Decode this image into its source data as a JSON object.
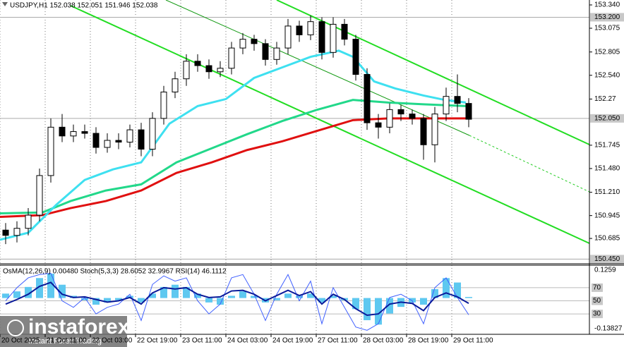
{
  "chart_data": {
    "type": "candlestick",
    "title": "USDJPY,H1  152.038 152.051 151.946 152.038",
    "xlim": [
      0,
      208.75
    ],
    "xticks": [
      {
        "value": 0,
        "label": "20 Oct 2025"
      },
      {
        "value": 16,
        "label": "21 Oct 11:00"
      },
      {
        "value": 32,
        "label": "22 Oct 03:00"
      },
      {
        "value": 48,
        "label": "22 Oct 19:00"
      },
      {
        "value": 64,
        "label": "23 Oct 11:00"
      },
      {
        "value": 80,
        "label": "24 Oct 03:00"
      },
      {
        "value": 96,
        "label": "24 Oct 19:00"
      },
      {
        "value": 112,
        "label": "27 Oct 11:00"
      },
      {
        "value": 128,
        "label": "28 Oct 03:00"
      },
      {
        "value": 144,
        "label": "28 Oct 19:00"
      },
      {
        "value": 160,
        "label": "29 Oct 11:00"
      }
    ],
    "ylim": [
      150.413,
      153.396
    ],
    "yticks": [
      150.685,
      150.945,
      {
        "value": 151.21,
        "label": "151.210"
      },
      {
        "value": 151.48,
        "label": "151.480"
      },
      151.745,
      152.27,
      {
        "value": 152.54,
        "label": "152.540"
      },
      152.805,
      153.075,
      {
        "value": 153.34,
        "label": "153.340"
      }
    ],
    "levels": [
      {
        "value": 153.2,
        "label": "153.200"
      },
      {
        "value": 152.05,
        "label": "152.050"
      },
      {
        "value": 150.45,
        "label": "150.450"
      }
    ],
    "x": [
      2,
      6,
      10,
      14,
      18,
      22,
      26,
      30,
      34,
      38,
      42,
      46,
      50,
      54,
      58,
      62,
      66,
      70,
      74,
      78,
      82,
      86,
      90,
      94,
      98,
      102,
      106,
      110,
      114,
      118,
      122,
      126,
      130,
      134,
      138,
      142,
      146,
      150,
      154,
      158,
      162,
      166
    ],
    "open": [
      150.78,
      150.72,
      150.8,
      150.95,
      151.4,
      151.95,
      151.85,
      151.9,
      151.88,
      151.72,
      151.8,
      151.78,
      151.92,
      151.7,
      152.05,
      152.35,
      152.5,
      152.7,
      152.65,
      152.58,
      152.62,
      152.85,
      152.95,
      152.9,
      152.72,
      152.85,
      153.1,
      153.0,
      153.15,
      152.8,
      153.12,
      152.95,
      152.55,
      152.0,
      151.95,
      152.15,
      152.1,
      152.05,
      151.75,
      152.1,
      152.3,
      152.22
    ],
    "high": [
      150.86,
      150.88,
      151.03,
      151.48,
      152.05,
      152.1,
      151.98,
      151.98,
      151.95,
      151.88,
      151.88,
      151.98,
      152.0,
      152.12,
      152.42,
      152.58,
      152.78,
      152.78,
      152.72,
      152.7,
      152.92,
      153.02,
      153.0,
      152.95,
      152.92,
      153.18,
      153.16,
      153.22,
      153.2,
      153.2,
      153.18,
      153.0,
      152.62,
      152.1,
      152.22,
      152.2,
      152.15,
      152.1,
      152.18,
      152.4,
      152.55,
      152.28
    ],
    "low": [
      150.62,
      150.64,
      150.72,
      150.88,
      151.32,
      151.78,
      151.78,
      151.82,
      151.65,
      151.66,
      151.7,
      151.72,
      151.62,
      151.62,
      151.98,
      152.28,
      152.42,
      152.58,
      152.5,
      152.52,
      152.55,
      152.78,
      152.82,
      152.65,
      152.66,
      152.78,
      152.92,
      152.94,
      152.72,
      152.74,
      152.88,
      152.48,
      151.92,
      151.82,
      151.88,
      152.02,
      151.98,
      151.58,
      151.55,
      152.02,
      152.12,
      151.95
    ],
    "close": [
      150.72,
      150.8,
      150.95,
      151.4,
      151.95,
      151.85,
      151.9,
      151.88,
      151.72,
      151.8,
      151.78,
      151.92,
      151.7,
      152.05,
      152.35,
      152.5,
      152.7,
      152.65,
      152.58,
      152.62,
      152.85,
      152.95,
      152.9,
      152.72,
      152.85,
      153.1,
      153.0,
      153.15,
      152.8,
      153.12,
      152.95,
      152.55,
      152.0,
      151.95,
      152.15,
      152.1,
      152.05,
      151.75,
      152.1,
      152.3,
      152.22,
      152.04
    ],
    "moving_averages": [
      {
        "color": "#e01010",
        "x": [
          0,
          15,
          25,
          37.5,
          50,
          62.5,
          75,
          87.5,
          100,
          112.5,
          125,
          137.5,
          150,
          165
        ],
        "values": [
          150.93,
          150.95,
          151.03,
          151.11,
          151.23,
          151.43,
          151.55,
          151.69,
          151.79,
          151.91,
          152.03,
          152.05,
          152.05,
          152.05
        ]
      },
      {
        "color": "#22d88a",
        "x": [
          0,
          15,
          25,
          37.5,
          50,
          62.5,
          75,
          87.5,
          100,
          112.5,
          125,
          137.5,
          150,
          165
        ],
        "values": [
          150.97,
          150.98,
          151.11,
          151.23,
          151.3,
          151.55,
          151.71,
          151.87,
          152.02,
          152.15,
          152.26,
          152.23,
          152.21,
          152.19
        ]
      },
      {
        "color": "#3ee0f0",
        "x": [
          0,
          10,
          20,
          30,
          40,
          50,
          60,
          70,
          80,
          90,
          100,
          110,
          120,
          125,
          132.5,
          140,
          150,
          157.5,
          165
        ],
        "values": [
          150.67,
          150.75,
          151.07,
          151.35,
          151.47,
          151.55,
          151.99,
          152.19,
          152.27,
          152.51,
          152.63,
          152.75,
          152.82,
          152.75,
          152.47,
          152.39,
          152.31,
          152.26,
          152.23
        ]
      }
    ],
    "indicator": {
      "label": "OsMA(12,26,9) 0.00480  Stoch(5,3,3) 28.6052 32.9967  RSI(14) 46.1112",
      "osma_lim": [
        -0.13827,
        0.1259
      ],
      "osma_ticks": [
        0.1259,
        -0.13827
      ],
      "osc_lim": [
        0,
        100
      ],
      "osc_ticks": [
        70,
        50,
        30
      ],
      "osma": {
        "color": "#5ec8f0",
        "values": [
          0.02,
          0.03,
          0.05,
          0.09,
          0.11,
          0.06,
          0.01,
          -0.01,
          -0.03,
          -0.02,
          -0.01,
          0.01,
          -0.02,
          0.02,
          0.05,
          0.06,
          0.05,
          0.02,
          -0.02,
          -0.03,
          0.01,
          0.03,
          0.01,
          -0.02,
          -0.01,
          0.02,
          0.01,
          0.02,
          -0.02,
          0.01,
          -0.01,
          -0.05,
          -0.1,
          -0.12,
          -0.07,
          -0.04,
          -0.02,
          -0.03,
          0.04,
          0.09,
          0.07,
          0.0048
        ]
      },
      "stoch": {
        "color": "#4060ff",
        "values": [
          50,
          70,
          85,
          90,
          92,
          50,
          40,
          55,
          30,
          40,
          45,
          60,
          20,
          75,
          88,
          80,
          85,
          50,
          30,
          45,
          85,
          90,
          60,
          20,
          60,
          90,
          50,
          80,
          15,
          70,
          40,
          10,
          5,
          15,
          55,
          60,
          50,
          15,
          70,
          85,
          55,
          28.6052
        ]
      },
      "rsi": {
        "color": "#0a1a9a",
        "values": [
          45,
          52,
          60,
          72,
          78,
          60,
          55,
          56,
          52,
          48,
          50,
          55,
          45,
          62,
          70,
          68,
          70,
          60,
          55,
          56,
          65,
          66,
          60,
          50,
          58,
          66,
          58,
          64,
          45,
          60,
          52,
          38,
          28,
          30,
          45,
          48,
          46,
          35,
          55,
          62,
          56,
          46.1112
        ]
      }
    },
    "watermark": {
      "brand": "instaforex",
      "tagline": "Instant Forex Trading"
    }
  }
}
